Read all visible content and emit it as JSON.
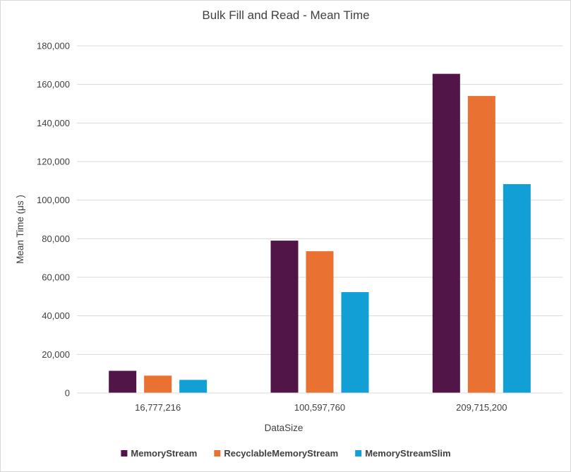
{
  "chart_data": {
    "type": "bar",
    "title": "Bulk Fill and Read - Mean Time",
    "xlabel": "DataSize",
    "ylabel": "Mean Time (μs )",
    "categories": [
      "16,777,216",
      "100,597,760",
      "209,715,200"
    ],
    "ylim": [
      0,
      180000
    ],
    "yticks": [
      0,
      20000,
      40000,
      60000,
      80000,
      100000,
      120000,
      140000,
      160000,
      180000
    ],
    "ytick_labels": [
      "0",
      "20,000",
      "40,000",
      "60,000",
      "80,000",
      "100,000",
      "120,000",
      "140,000",
      "160,000",
      "180,000"
    ],
    "grid": true,
    "legend_position": "bottom",
    "series": [
      {
        "name": "MemoryStream",
        "color": "#521548",
        "values": [
          11500,
          79000,
          165500
        ]
      },
      {
        "name": "RecyclableMemoryStream",
        "color": "#e97132",
        "values": [
          9000,
          73500,
          154000
        ]
      },
      {
        "name": "MemoryStreamSlim",
        "color": "#119fd6",
        "values": [
          6800,
          52300,
          108300
        ]
      }
    ]
  }
}
